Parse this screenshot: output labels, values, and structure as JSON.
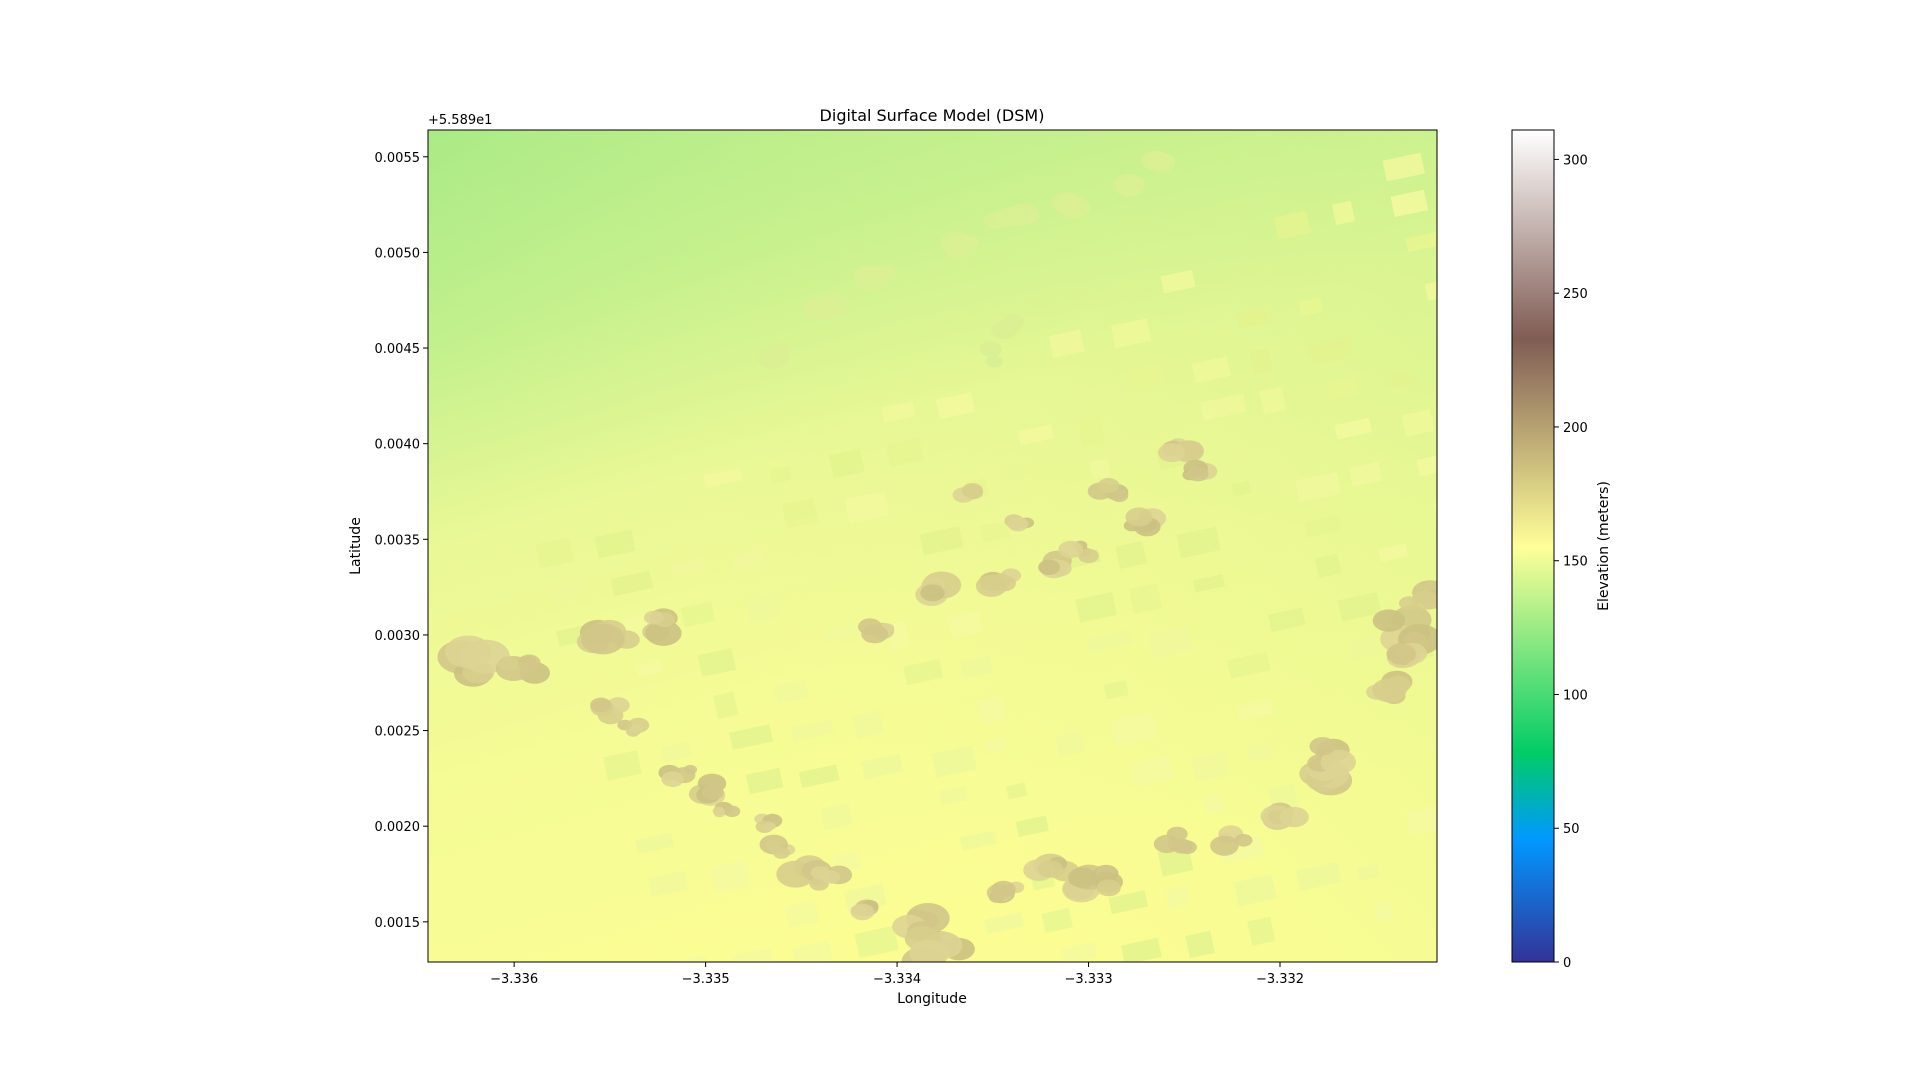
{
  "chart_data": {
    "type": "heatmap",
    "title": "Digital Surface Model (DSM)",
    "xlabel": "Longitude",
    "ylabel": "Latitude",
    "xlim": [
      -3.33645,
      -3.33118
    ],
    "ylim": [
      0.00129,
      0.00564
    ],
    "x_ticks": [
      {
        "value": -3.336,
        "label": "−3.336"
      },
      {
        "value": -3.335,
        "label": "−3.335"
      },
      {
        "value": -3.334,
        "label": "−3.334"
      },
      {
        "value": -3.333,
        "label": "−3.333"
      },
      {
        "value": -3.332,
        "label": "−3.332"
      }
    ],
    "y_ticks": [
      {
        "value": 0.0015,
        "label": "0.0015"
      },
      {
        "value": 0.002,
        "label": "0.0020"
      },
      {
        "value": 0.0025,
        "label": "0.0025"
      },
      {
        "value": 0.003,
        "label": "0.0030"
      },
      {
        "value": 0.0035,
        "label": "0.0035"
      },
      {
        "value": 0.004,
        "label": "0.0040"
      },
      {
        "value": 0.0045,
        "label": "0.0045"
      },
      {
        "value": 0.005,
        "label": "0.0050"
      },
      {
        "value": 0.0055,
        "label": "0.0055"
      }
    ],
    "y_offset_label": "+5.589e1",
    "colorbar": {
      "label": "Elevation (meters)",
      "range": [
        0,
        311
      ],
      "ticks": [
        {
          "value": 0,
          "label": "0"
        },
        {
          "value": 50,
          "label": "50"
        },
        {
          "value": 100,
          "label": "100"
        },
        {
          "value": 150,
          "label": "150"
        },
        {
          "value": 200,
          "label": "200"
        },
        {
          "value": 250,
          "label": "250"
        },
        {
          "value": 300,
          "label": "300"
        }
      ],
      "colormap": "terrain",
      "stops": [
        {
          "value": 0,
          "color": "#333399"
        },
        {
          "value": 46,
          "color": "#0099ff"
        },
        {
          "value": 78,
          "color": "#00cc66"
        },
        {
          "value": 155,
          "color": "#ffff99"
        },
        {
          "value": 233,
          "color": "#805c54"
        },
        {
          "value": 311,
          "color": "#ffffff"
        }
      ]
    },
    "elevation_summary": {
      "northwest_corner": 130,
      "southwest_corner": 160,
      "background_range": [
        130,
        165
      ],
      "tree_canopy_range": [
        180,
        200
      ],
      "building_range": [
        155,
        175
      ]
    }
  }
}
